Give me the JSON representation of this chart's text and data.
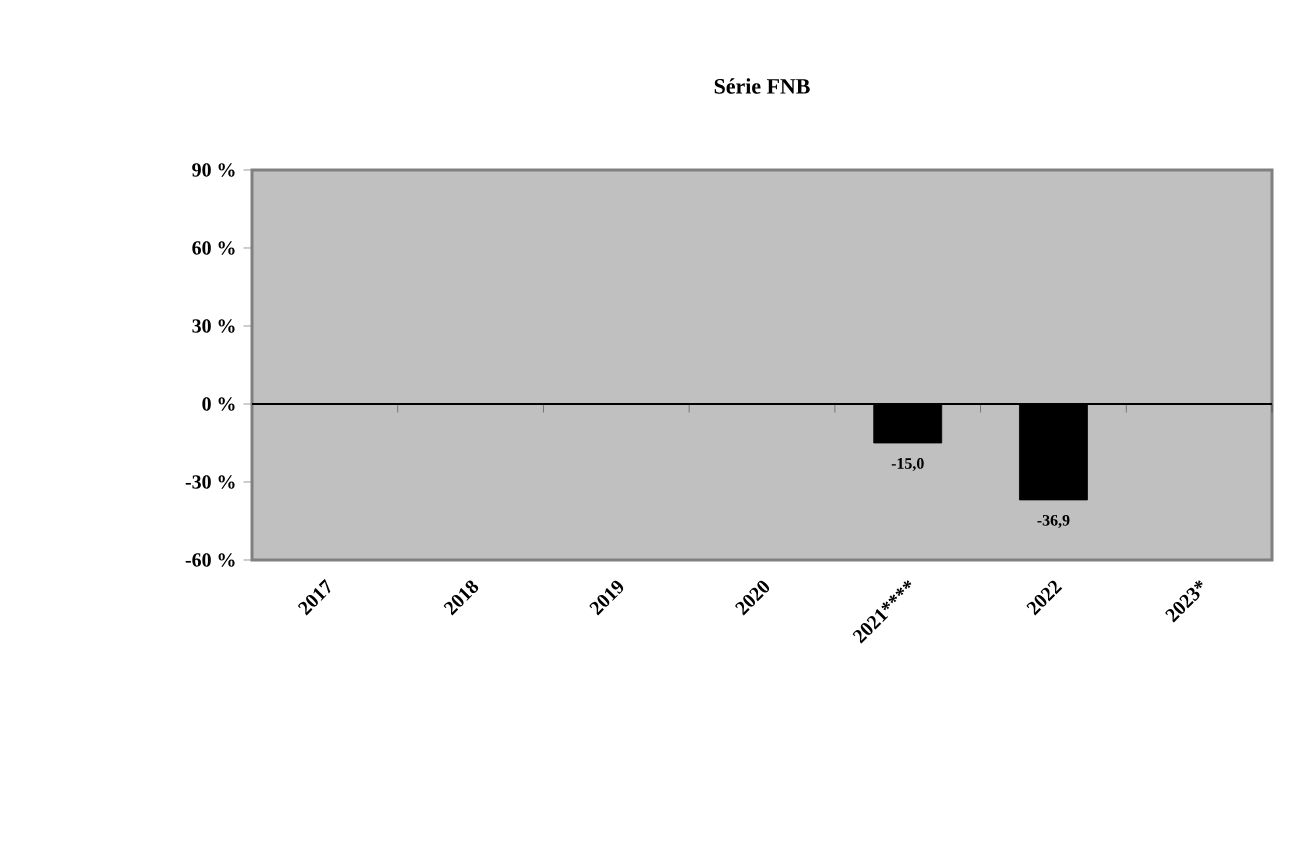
{
  "chart_data": {
    "type": "bar",
    "title": "Série FNB",
    "categories": [
      "2017",
      "2018",
      "2019",
      "2020",
      "2021****",
      "2022",
      "2023*****"
    ],
    "values": [
      null,
      null,
      null,
      null,
      -15.0,
      -36.9,
      null
    ],
    "value_labels": [
      null,
      null,
      null,
      null,
      "-15,0",
      "-36,9",
      null
    ],
    "color": "#000000",
    "ylim": [
      -60,
      90
    ],
    "yticks": [
      {
        "value": -60,
        "label": "-60 %"
      },
      {
        "value": -30,
        "label": "-30 %"
      },
      {
        "value": 0,
        "label": "0 %"
      },
      {
        "value": 30,
        "label": "30 %"
      },
      {
        "value": 60,
        "label": "60 %"
      },
      {
        "value": 90,
        "label": "90 %"
      }
    ]
  }
}
